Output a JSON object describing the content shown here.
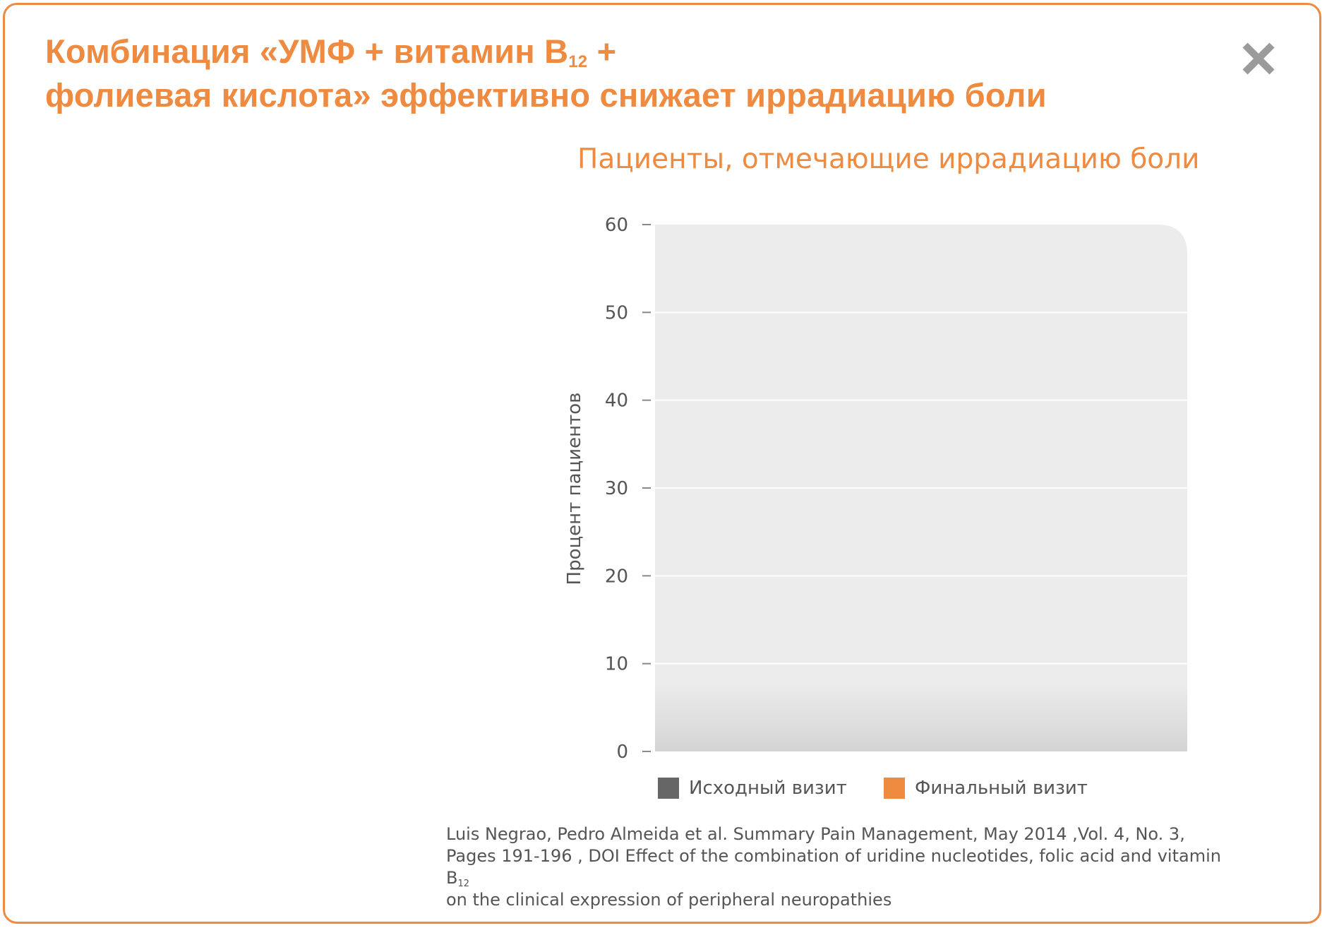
{
  "header": {
    "title_line1_pre": "Комбинация «УМФ + витамин B",
    "title_line1_sub": "12",
    "title_line1_post": " +",
    "title_line2": "фолиевая кислота» эффективно снижает иррадиацию боли",
    "close_icon": "close-icon"
  },
  "colors": {
    "accent": "#ef8a41",
    "baseline_series": "#666666",
    "plot_background": "#ececec"
  },
  "chart_data": {
    "type": "bar",
    "title": "Пациенты, отмечающие иррадиацию боли",
    "xlabel": "",
    "ylabel": "Процент пациентов",
    "ylim": [
      0,
      60
    ],
    "yticks": [
      0,
      10,
      20,
      30,
      40,
      50,
      60
    ],
    "grid": true,
    "legend_position": "bottom",
    "categories": [],
    "series": [
      {
        "name": "Исходный визит",
        "color": "#666666",
        "values": []
      },
      {
        "name": "Финальный визит",
        "color": "#ef8a41",
        "values": []
      }
    ]
  },
  "citation": {
    "line1": "Luis Negrao, Pedro Almeida et al. Summary Pain Management, May 2014 ,Vol. 4, No. 3,",
    "line2_pre": "Pages 191-196 , DOI Effect of the combination of uridine nucleotides, folic acid and vitamin B",
    "line2_sub": "12",
    "line3": "on the clinical expression of peripheral neuropathies"
  }
}
